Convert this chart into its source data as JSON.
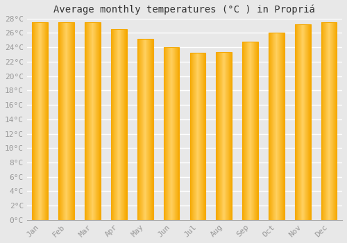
{
  "title": "Average monthly temperatures (°C ) in Propriá",
  "months": [
    "Jan",
    "Feb",
    "Mar",
    "Apr",
    "May",
    "Jun",
    "Jul",
    "Aug",
    "Sep",
    "Oct",
    "Nov",
    "Dec"
  ],
  "values": [
    27.5,
    27.5,
    27.5,
    26.5,
    25.2,
    24.0,
    23.2,
    23.3,
    24.8,
    26.0,
    27.2,
    27.5
  ],
  "bar_color_center": "#FFD060",
  "bar_color_edge": "#F5A800",
  "ylim": [
    0,
    28
  ],
  "ytick_step": 2,
  "background_color": "#e8e8e8",
  "grid_color": "#ffffff",
  "title_fontsize": 10,
  "tick_fontsize": 8,
  "tick_color": "#999999",
  "title_color": "#333333",
  "bar_width": 0.6
}
